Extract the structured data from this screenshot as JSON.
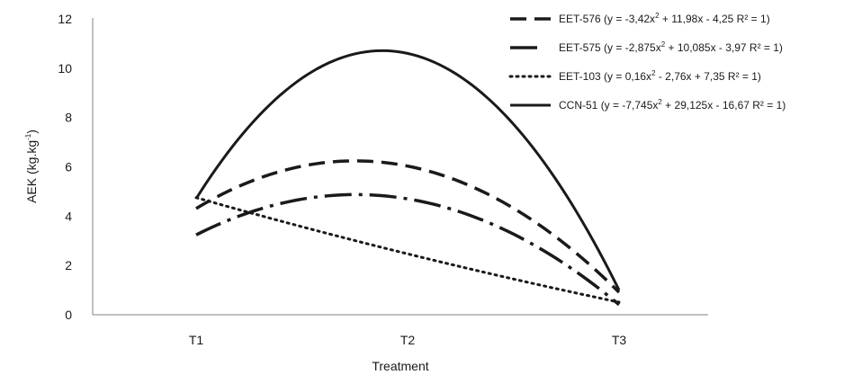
{
  "chart_data": {
    "type": "line",
    "categories": [
      "T1",
      "T2",
      "T3"
    ],
    "xlabel": "Treatment",
    "ylabel": "AEK (kg.kg",
    "ylabel_sup": "-1",
    "ylabel_close": ")",
    "ylim": [
      0,
      12
    ],
    "yticks": [
      "0",
      "2",
      "4",
      "6",
      "8",
      "10",
      "12"
    ],
    "grid": false,
    "legend_position": "top-right",
    "series": [
      {
        "name": "EET-576",
        "equation": "(y = -3,42x",
        "equation_sup": "2",
        "equation_rest": " + 11,98x - 4,25   R² = 1)",
        "a": -3.42,
        "b": 11.98,
        "c": -4.25,
        "values": [
          4.31,
          6.03,
          0.9
        ],
        "dash": "18,9",
        "width": 3.5
      },
      {
        "name": "EET-575",
        "equation": "(y = -2,875x",
        "equation_sup": "2",
        "equation_rest": " + 10,085x - 3,97   R² = 1)",
        "a": -2.875,
        "b": 10.085,
        "c": -3.97,
        "values": [
          3.24,
          4.7,
          0.41
        ],
        "dash": "30,8,4,8",
        "width": 3.5
      },
      {
        "name": "EET-103",
        "equation": "(y = 0,16x",
        "equation_sup": "2",
        "equation_rest": " - 2,76x + 7,35   R² = 1)",
        "a": 0.16,
        "b": -2.76,
        "c": 7.35,
        "values": [
          4.75,
          2.47,
          0.51
        ],
        "dash": "2,5",
        "width": 3
      },
      {
        "name": "CCN-51",
        "equation": "(y = -7,745x",
        "equation_sup": "2",
        "equation_rest": " + 29,125x - 16,67   R² = 1)",
        "a": -7.745,
        "b": 29.125,
        "c": -16.67,
        "values": [
          4.71,
          10.62,
          1.04
        ],
        "dash": "",
        "width": 3
      }
    ]
  }
}
